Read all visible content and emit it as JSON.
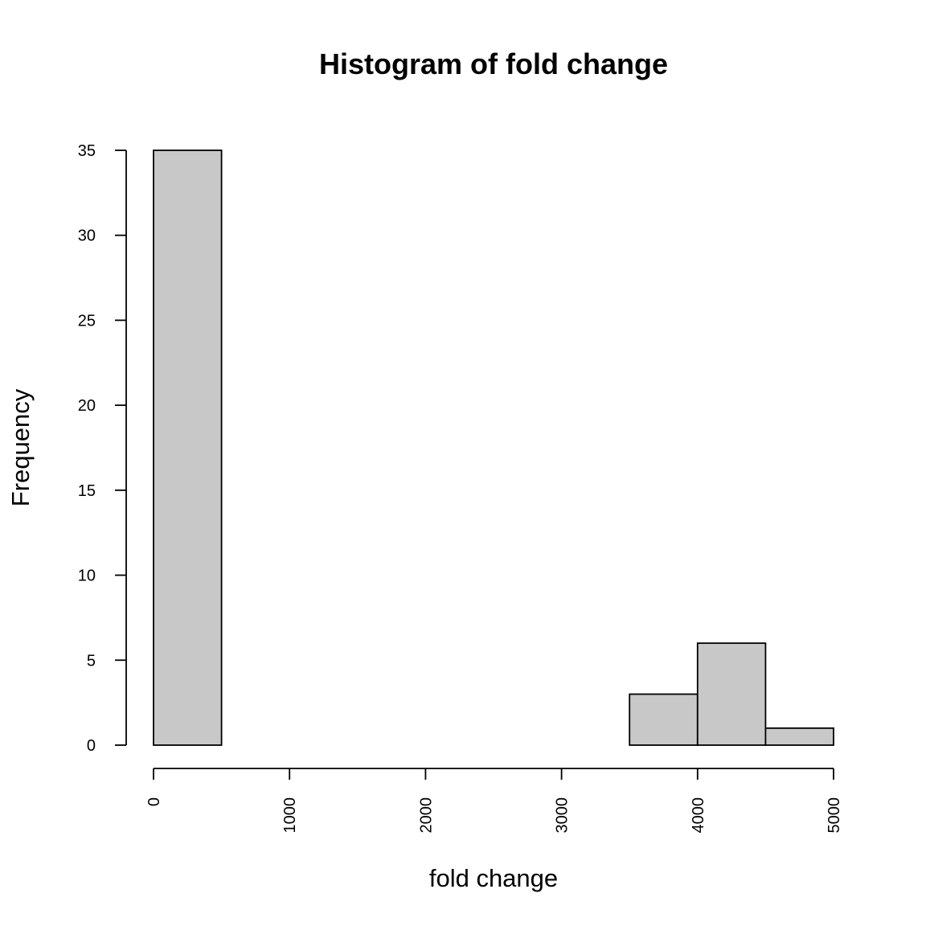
{
  "chart_data": {
    "type": "bar",
    "title": "Histogram of fold change",
    "xlabel": "fold change",
    "ylabel": "Frequency",
    "bins": [
      {
        "start": 0,
        "end": 500,
        "count": 35
      },
      {
        "start": 500,
        "end": 1000,
        "count": 0
      },
      {
        "start": 1000,
        "end": 1500,
        "count": 0
      },
      {
        "start": 1500,
        "end": 2000,
        "count": 0
      },
      {
        "start": 2000,
        "end": 2500,
        "count": 0
      },
      {
        "start": 2500,
        "end": 3000,
        "count": 0
      },
      {
        "start": 3000,
        "end": 3500,
        "count": 0
      },
      {
        "start": 3500,
        "end": 4000,
        "count": 3
      },
      {
        "start": 4000,
        "end": 4500,
        "count": 6
      },
      {
        "start": 4500,
        "end": 5000,
        "count": 1
      }
    ],
    "xlim": [
      0,
      5000
    ],
    "ylim": [
      0,
      35
    ],
    "x_ticks": [
      "0",
      "1000",
      "2000",
      "3000",
      "4000",
      "5000"
    ],
    "y_ticks": [
      "0",
      "5",
      "10",
      "15",
      "20",
      "25",
      "30",
      "35"
    ],
    "bar_color": "#c8c8c8",
    "grid": false
  }
}
